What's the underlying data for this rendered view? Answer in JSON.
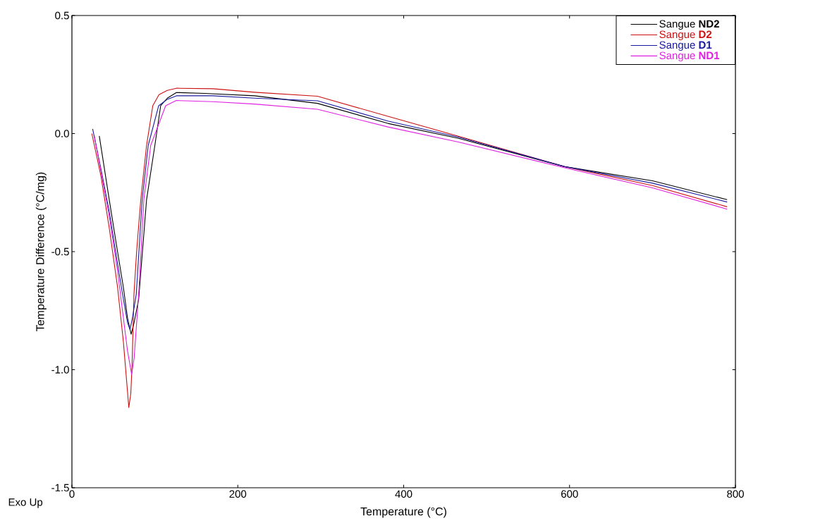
{
  "chart_data": {
    "type": "line",
    "xlabel": "Temperature (°C)",
    "ylabel": "Temperature Difference (°C/mg)",
    "annotations": [
      "Exo Up"
    ],
    "xlim": [
      0,
      800
    ],
    "ylim": [
      -1.5,
      0.5
    ],
    "xticks": [
      0,
      200,
      400,
      600,
      800
    ],
    "yticks": [
      {
        "value": -1.5,
        "label": "-1.5"
      },
      {
        "value": -1.0,
        "label": "-1.0"
      },
      {
        "value": -0.5,
        "label": "-0.5"
      },
      {
        "value": 0.0,
        "label": "0.0"
      },
      {
        "value": 0.5,
        "label": "0.5"
      }
    ],
    "grid": false,
    "legend": "top right",
    "marker": "none",
    "line_style": "solid",
    "series": [
      {
        "name": "Sangue **ND2**",
        "color": "#000000",
        "x": [
          33,
          45,
          55,
          62,
          67,
          71.4,
          75,
          80.5,
          90,
          100,
          107,
          115,
          126,
          160,
          220,
          296,
          381,
          466,
          594,
          700,
          790
        ],
        "values": [
          -0.01,
          -0.28,
          -0.5,
          -0.65,
          -0.78,
          -0.85,
          -0.8,
          -0.7,
          -0.28,
          -0.05,
          0.118,
          0.15,
          0.174,
          0.17,
          0.16,
          0.128,
          0.043,
          -0.02,
          -0.14,
          -0.2,
          -0.28
        ]
      },
      {
        "name": "Sangue **D2**",
        "color": "#cc1111",
        "x": [
          24,
          35,
          45,
          55,
          62,
          66,
          68.6,
          71,
          72.5,
          74.8,
          78,
          83,
          90,
          97.5,
          105,
          115,
          126,
          170,
          220,
          296,
          381,
          466,
          594,
          700,
          790
        ],
        "values": [
          0.0,
          -0.18,
          -0.4,
          -0.65,
          -0.88,
          -1.05,
          -1.16,
          -1.1,
          -0.98,
          -0.68,
          -0.5,
          -0.28,
          -0.05,
          0.118,
          0.165,
          0.183,
          0.192,
          0.19,
          0.175,
          0.158,
          0.073,
          -0.011,
          -0.14,
          -0.22,
          -0.31
        ]
      },
      {
        "name": "Sangue **D1**",
        "color": "#1a1aa0",
        "x": [
          25,
          35,
          45,
          55,
          62,
          67,
          70,
          73,
          77.6,
          84.7,
          92,
          104.6,
          115,
          126,
          170,
          220,
          296,
          381,
          466,
          594,
          700,
          790
        ],
        "values": [
          0.02,
          -0.15,
          -0.33,
          -0.55,
          -0.7,
          -0.8,
          -0.83,
          -0.78,
          -0.68,
          -0.28,
          -0.05,
          0.118,
          0.145,
          0.16,
          0.16,
          0.15,
          0.139,
          0.053,
          -0.015,
          -0.14,
          -0.21,
          -0.29
        ]
      },
      {
        "name": "Sangue **ND1**",
        "color": "#e020e0",
        "x": [
          27,
          35,
          45,
          55,
          62,
          67,
          72,
          75,
          80.5,
          86.7,
          95,
          113,
          126,
          170,
          220,
          296,
          381,
          466,
          594,
          700,
          790
        ],
        "values": [
          -0.01,
          -0.16,
          -0.35,
          -0.58,
          -0.78,
          -0.92,
          -1.02,
          -0.95,
          -0.68,
          -0.28,
          -0.05,
          0.118,
          0.14,
          0.135,
          0.125,
          0.103,
          0.028,
          -0.036,
          -0.145,
          -0.23,
          -0.32
        ]
      }
    ]
  }
}
